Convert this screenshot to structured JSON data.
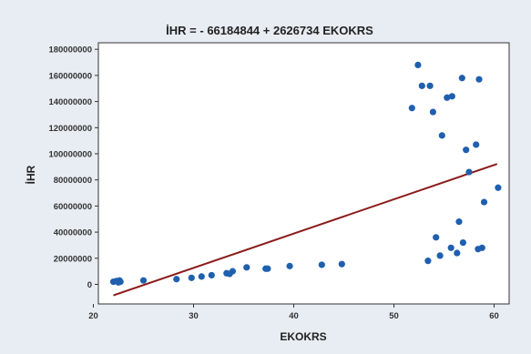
{
  "chart_data": {
    "type": "scatter",
    "title": "İHR = - 66184844 + 2626734 EKOKRS",
    "xlabel": "EKOKRS",
    "ylabel": "İHR",
    "xlim": [
      20.5,
      61.5
    ],
    "ylim": [
      -15000000,
      185000000
    ],
    "x_ticks": [
      20,
      30,
      40,
      50,
      60
    ],
    "y_ticks": [
      0,
      20000000,
      40000000,
      60000000,
      80000000,
      100000000,
      120000000,
      140000000,
      160000000,
      180000000
    ],
    "x_tick_labels": [
      "20",
      "30",
      "40",
      "50",
      "60"
    ],
    "y_tick_labels": [
      "0",
      "20000000",
      "40000000",
      "60000000",
      "80000000",
      "100000000",
      "120000000",
      "140000000",
      "160000000",
      "180000000"
    ],
    "grid": false,
    "legend": "none",
    "colors": {
      "point": "#1f5fae",
      "fit_line": "#8b1a1a",
      "frame_bg": "#e8edf3",
      "plot_bg": "#ffffff"
    },
    "fit_line": {
      "intercept": -66184844,
      "slope": 2626734,
      "x_range": [
        22,
        60.3
      ]
    },
    "points": [
      [
        22.0,
        2000000
      ],
      [
        22.3,
        2500000
      ],
      [
        22.5,
        1500000
      ],
      [
        22.6,
        3000000
      ],
      [
        22.7,
        2000000
      ],
      [
        25.0,
        3000000
      ],
      [
        28.3,
        4000000
      ],
      [
        29.8,
        5000000
      ],
      [
        30.8,
        6000000
      ],
      [
        31.8,
        7000000
      ],
      [
        33.3,
        8500000
      ],
      [
        33.6,
        8000000
      ],
      [
        33.9,
        10000000
      ],
      [
        35.3,
        13000000
      ],
      [
        37.2,
        12000000
      ],
      [
        37.4,
        12000000
      ],
      [
        39.6,
        14000000
      ],
      [
        42.8,
        15000000
      ],
      [
        44.8,
        15500000
      ],
      [
        51.8,
        135000000
      ],
      [
        52.4,
        168000000
      ],
      [
        52.8,
        152000000
      ],
      [
        53.4,
        18000000
      ],
      [
        53.6,
        152000000
      ],
      [
        53.9,
        132000000
      ],
      [
        54.2,
        36000000
      ],
      [
        54.6,
        22000000
      ],
      [
        54.8,
        114000000
      ],
      [
        55.3,
        143000000
      ],
      [
        55.7,
        28000000
      ],
      [
        55.8,
        144000000
      ],
      [
        56.3,
        24000000
      ],
      [
        56.5,
        48000000
      ],
      [
        56.8,
        158000000
      ],
      [
        56.9,
        32000000
      ],
      [
        57.2,
        103000000
      ],
      [
        57.5,
        86000000
      ],
      [
        58.2,
        107000000
      ],
      [
        58.4,
        27000000
      ],
      [
        58.5,
        157000000
      ],
      [
        58.8,
        28000000
      ],
      [
        59.0,
        63000000
      ],
      [
        60.4,
        74000000
      ]
    ]
  }
}
